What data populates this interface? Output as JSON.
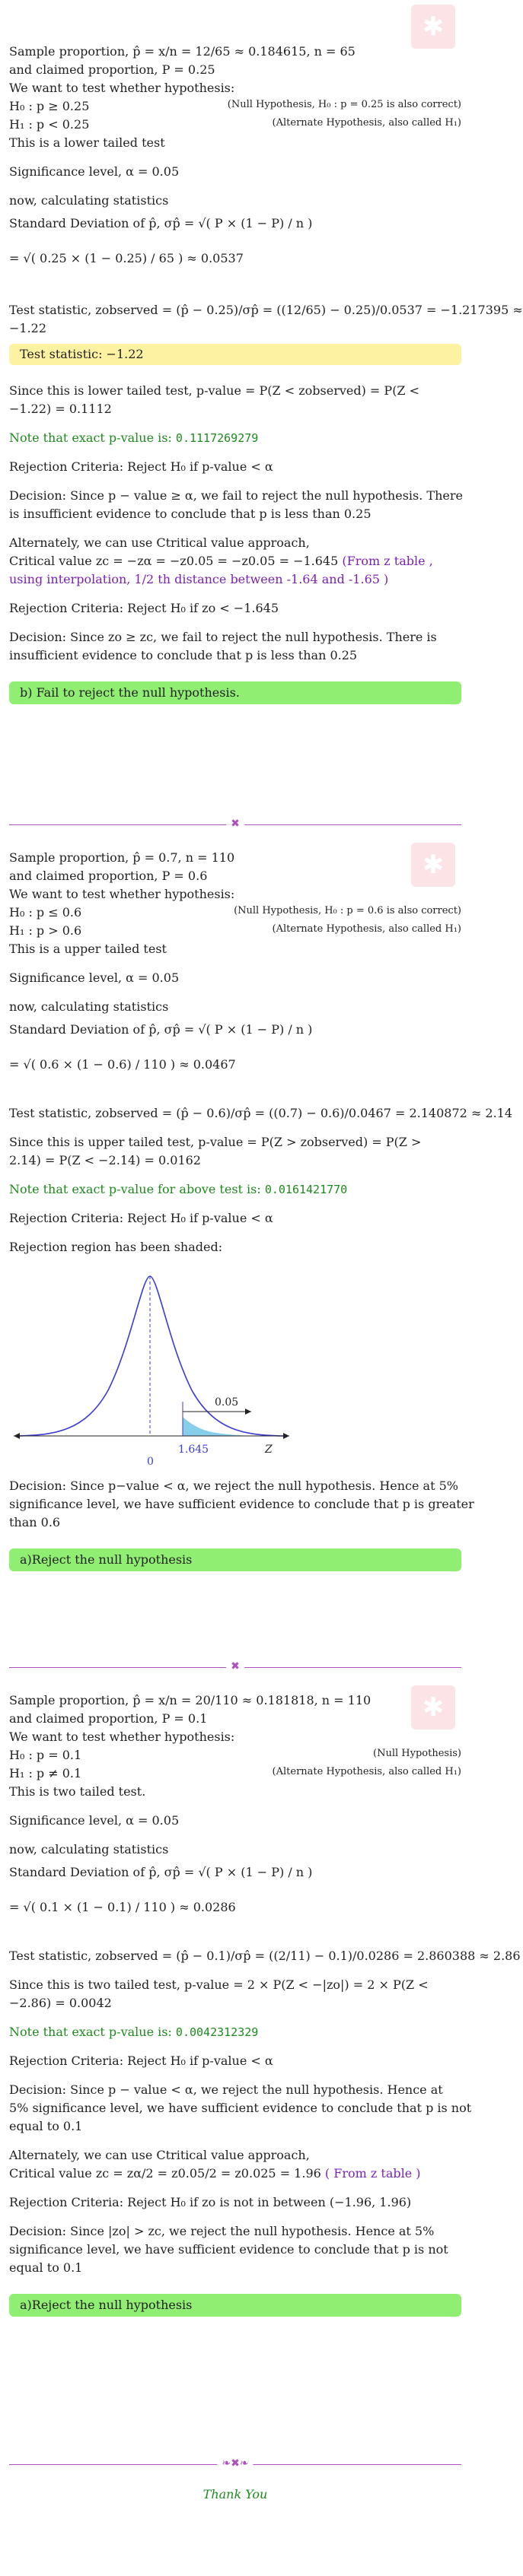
{
  "s1": {
    "l1a": "Sample proportion,",
    "l1b": "p̂ = x/n = 12/65 ≈ 0.184615, n = 65",
    "l2": "and claimed proportion, P = 0.25",
    "l3": "We want to test whether hypothesis:",
    "h0": "H₀ : p ≥ 0.25",
    "h0note": "(Null Hypothesis, H₀ : p = 0.25 is also correct)",
    "h1": "H₁ : p < 0.25",
    "h1note": "(Alternate Hypothesis, also called H₁)",
    "tail": "This is a lower tailed test",
    "alpha": "Significance level, α = 0.05",
    "calc": "now, calculating statistics",
    "sd": "Standard Deviation of p̂, σp̂ = √( P × (1 − P) / n )",
    "sdval": "= √( 0.25 × (1 − 0.25) / 65 ) ≈ 0.0537",
    "ts1": "Test statistic, zobserved = (p̂ − 0.25)/σp̂ = ((12/65) − 0.25)/0.0537 = −1.217395 ≈",
    "ts2": "−1.22",
    "tsbox": "Test statistic:  −1.22",
    "pv1": "Since this is lower tailed test, p-value = P(Z < zobserved) = P(Z <",
    "pv2": "−1.22) = 0.1112",
    "exact_lbl": "Note that exact p-value is: ",
    "exact_val": "0.1117269279",
    "rej": "Rejection Criteria: Reject H₀ if p-value < α",
    "dec1": "Decision: Since p − value ≥ α, we fail to reject the null hypothesis. There",
    "dec2": "is insufficient evidence to conclude that p is less than 0.25",
    "alt1": "Alternately, we can use Ctritical value approach,",
    "alt2a": "Critical value zc = −zα = −z0.05 = −z0.05 = −1.645",
    "alt2b": " (From z table ,",
    "alt3": "using interpolation, 1/2 th distance between -1.64 and -1.65 )",
    "rej2": "Rejection Criteria: Reject H₀ if zo < −1.645",
    "dec3": "Decision: Since zo ≥ zc, we fail to reject the null hypothesis. There is",
    "dec4": "insufficient evidence to conclude that p is less than 0.25",
    "ans": "b) Fail to reject the null hypothesis."
  },
  "s2": {
    "l1": "Sample proportion, p̂ = 0.7, n = 110",
    "l2": "and claimed proportion, P = 0.6",
    "l3": "We want to test whether hypothesis:",
    "h0": "H₀ : p ≤ 0.6",
    "h0note": "(Null Hypothesis, H₀ : p = 0.6 is also correct)",
    "h1": "H₁ : p > 0.6",
    "h1note": "(Alternate Hypothesis, also called H₁)",
    "tail": "This is a upper tailed test",
    "alpha": "Significance level, α = 0.05",
    "calc": "now, calculating statistics",
    "sd": "Standard Deviation of p̂, σp̂ = √( P × (1 − P) / n )",
    "sdval": "= √( 0.6 × (1 − 0.6) / 110 ) ≈ 0.0467",
    "ts": "Test statistic, zobserved = (p̂ − 0.6)/σp̂ = ((0.7) − 0.6)/0.0467 = 2.140872 ≈ 2.14",
    "pv1": "Since this is upper tailed test, p-value = P(Z > zobserved) = P(Z >",
    "pv2": "2.14) = P(Z < −2.14) = 0.0162",
    "exact_lbl": "Note that exact p-value for above test is: ",
    "exact_val": "0.0161421770",
    "rej": "Rejection Criteria: Reject H₀ if p-value < α",
    "shaded": "Rejection region has been shaded:",
    "chart_alpha": "0.05",
    "chart_crit": "1.645",
    "chart_zero": "0",
    "chart_z": "Z",
    "dec1": "Decision: Since p−value < α, we reject the null hypothesis. Hence at 5%",
    "dec2": "significance level, we have sufficient evidence to conclude that p is greater",
    "dec3": "than 0.6",
    "ans": "a)Reject the null hypothesis"
  },
  "s3": {
    "l1": "Sample proportion, p̂ = x/n = 20/110 ≈ 0.181818, n = 110",
    "l2": "and claimed proportion, P = 0.1",
    "l3": "We want to test whether hypothesis:",
    "h0": "H₀ : p = 0.1",
    "h0note": "(Null Hypothesis)",
    "h1": "H₁ : p ≠ 0.1",
    "h1note": "(Alternate Hypothesis, also called H₁)",
    "tail": "This is two tailed test.",
    "alpha": "Significance level, α = 0.05",
    "calc": "now, calculating statistics",
    "sd": "Standard Deviation of p̂, σp̂ = √( P × (1 − P) / n )",
    "sdval": "= √( 0.1 × (1 − 0.1) / 110 ) ≈ 0.0286",
    "ts": "Test statistic, zobserved = (p̂ − 0.1)/σp̂ = ((2/11) − 0.1)/0.0286 = 2.860388 ≈ 2.86",
    "pv1": "Since this is two tailed test, p-value = 2 × P(Z < −|zo|) = 2 × P(Z <",
    "pv2": "−2.86) = 0.0042",
    "exact_lbl": "Note that exact p-value is: ",
    "exact_val": "0.0042312329",
    "rej": "Rejection Criteria: Reject H₀ if p-value < α",
    "dec1": "Decision: Since p − value < α, we reject the null hypothesis. Hence at",
    "dec2": "5% significance level, we have sufficient evidence to conclude that p is not",
    "dec3": "equal to 0.1",
    "alt1": "Alternately, we can use Ctritical value approach,",
    "alt2a": "Critical value zc = zα/2 = z0.05/2 = z0.025 = 1.96",
    "alt2b": " ( From z table )",
    "rej2": "Rejection Criteria: Reject H₀ if zo is not in between (−1.96, 1.96)",
    "dec4": "Decision: Since |zo| > zc, we reject the null hypothesis. Hence at 5%",
    "dec5": "significance level, we have sufficient evidence to conclude that p is not",
    "dec6": "equal to 0.1",
    "ans": "a)Reject the null hypothesis"
  },
  "thanks": "Thank You"
}
